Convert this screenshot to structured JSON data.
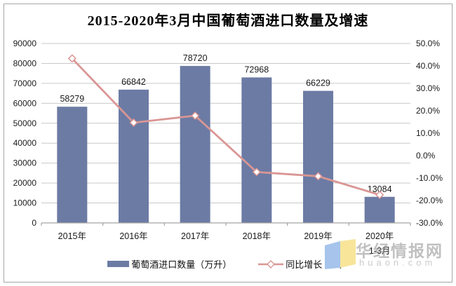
{
  "chart_data": {
    "type": "combo-bar-line",
    "title": "2015-2020年3月中国葡萄酒进口数量及增速",
    "categories": [
      "2015年",
      "2016年",
      "2017年",
      "2018年",
      "2019年",
      "2020年"
    ],
    "category_second_lines": [
      "",
      "",
      "",
      "",
      "",
      "1-3月"
    ],
    "series": [
      {
        "name": "葡萄酒进口数量（万升）",
        "type": "bar",
        "axis": "left",
        "values": [
          58279,
          66842,
          78720,
          72968,
          66229,
          13084
        ],
        "data_labels": [
          "58279",
          "66842",
          "78720",
          "72968",
          "66229",
          "13084"
        ]
      },
      {
        "name": "同比增长（%）",
        "type": "line",
        "axis": "right",
        "values": [
          43.3,
          14.7,
          17.8,
          -7.3,
          -9.2,
          -17.5
        ]
      }
    ],
    "left_axis": {
      "min": 0,
      "max": 90000,
      "step": 10000
    },
    "right_axis": {
      "min": -30,
      "max": 50,
      "step": 10,
      "decimals": 1,
      "suffix": "%"
    },
    "grid": "horizontal",
    "legend_position": "bottom",
    "data_labels_position": "outside-end"
  },
  "colors": {
    "bar": "#6c7ba4",
    "line": "#d99694",
    "marker_fill": "#ffffff",
    "gridline": "#c9c9c9",
    "axis_line": "#a3a3a3",
    "text": "#1a1a1a",
    "logo_left": "#a6c4ec",
    "logo_right": "#f8e59a"
  },
  "watermark": {
    "brand": "华经情报网",
    "domain": "huaon.com"
  }
}
